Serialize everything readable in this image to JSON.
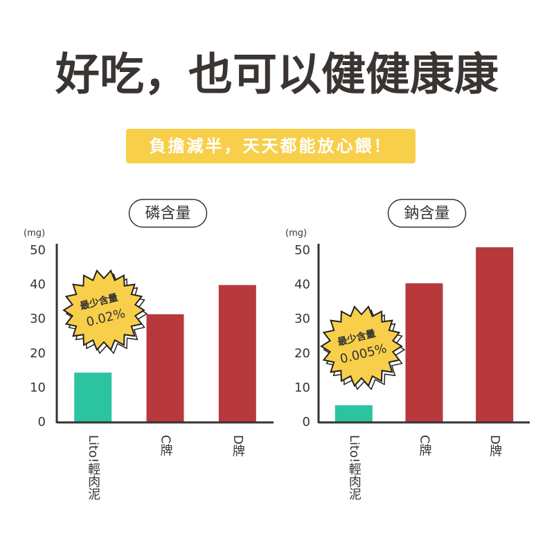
{
  "title": "好吃，也可以健健康康",
  "subtitle": "負擔減半，天天都能放心餵！",
  "chart_data": [
    {
      "type": "bar",
      "title": "磷含量",
      "ylabel": "(mg)",
      "categories": [
        "Lito!輕肉泥",
        "C牌",
        "D牌"
      ],
      "values": [
        14.5,
        31.5,
        40
      ],
      "colors": [
        "#2cc4a0",
        "#b8393c",
        "#b8393c"
      ],
      "ylim": [
        0,
        50
      ],
      "yticks": [
        0,
        10,
        20,
        30,
        40,
        50
      ],
      "grid": false,
      "badge_label": "最少含量",
      "badge_value": "0.02%"
    },
    {
      "type": "bar",
      "title": "鈉含量",
      "ylabel": "(mg)",
      "categories": [
        "Lito!輕肉泥",
        "C牌",
        "D牌"
      ],
      "values": [
        5,
        40.5,
        51
      ],
      "colors": [
        "#2cc4a0",
        "#b8393c",
        "#b8393c"
      ],
      "ylim": [
        0,
        50
      ],
      "yticks": [
        0,
        10,
        20,
        30,
        40,
        50
      ],
      "grid": false,
      "badge_label": "最少含量",
      "badge_value": "0.005%"
    }
  ]
}
